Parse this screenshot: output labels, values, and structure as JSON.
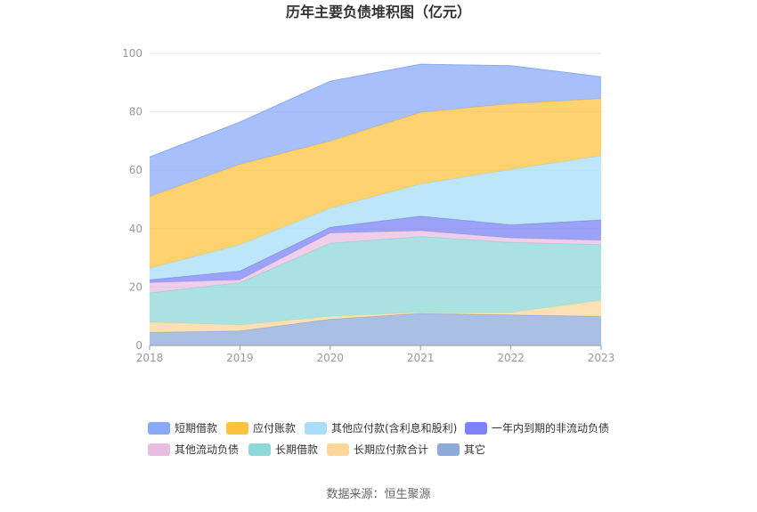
{
  "chart_data": {
    "type": "area",
    "stacked": true,
    "title": "历年主要负债堆积图（亿元）",
    "x": [
      "2018",
      "2019",
      "2020",
      "2021",
      "2022",
      "2023"
    ],
    "ylim": [
      0,
      100
    ],
    "yticks": [
      0,
      20,
      40,
      60,
      80,
      100
    ],
    "grid": true,
    "legend_position": "bottom",
    "series": [
      {
        "name": "其它",
        "color": "#8eaadb",
        "values": [
          4.5,
          5.0,
          9.0,
          11.0,
          10.5,
          10.0
        ]
      },
      {
        "name": "长期应付款合计",
        "color": "#fcd79c",
        "values": [
          3.5,
          2.0,
          1.0,
          0.3,
          0.8,
          5.5
        ]
      },
      {
        "name": "长期借款",
        "color": "#8dd8d8",
        "values": [
          10.0,
          14.5,
          25.0,
          26.0,
          24.0,
          19.0
        ]
      },
      {
        "name": "其他流动负债",
        "color": "#e8bde0",
        "values": [
          3.5,
          1.0,
          3.5,
          2.0,
          1.5,
          1.5
        ]
      },
      {
        "name": "一年内到期的非流动负债",
        "color": "#7b83f5",
        "values": [
          1.0,
          3.0,
          2.0,
          5.0,
          4.5,
          7.0
        ]
      },
      {
        "name": "其他应付款(含利息和股利)",
        "color": "#a8def7",
        "values": [
          4.0,
          9.0,
          6.5,
          11.0,
          19.0,
          22.0
        ]
      },
      {
        "name": "应付账款",
        "color": "#fdc33f",
        "values": [
          24.5,
          27.5,
          23.0,
          24.5,
          22.5,
          19.5
        ]
      },
      {
        "name": "短期借款",
        "color": "#89a9f9",
        "values": [
          13.5,
          14.5,
          20.5,
          16.5,
          13.0,
          7.5
        ]
      }
    ],
    "legend_order": [
      "短期借款",
      "应付账款",
      "其他应付款(含利息和股利)",
      "一年内到期的非流动负债",
      "其他流动负债",
      "长期借款",
      "长期应付款合计",
      "其它"
    ]
  },
  "footer": {
    "source": "数据来源：恒生聚源"
  }
}
